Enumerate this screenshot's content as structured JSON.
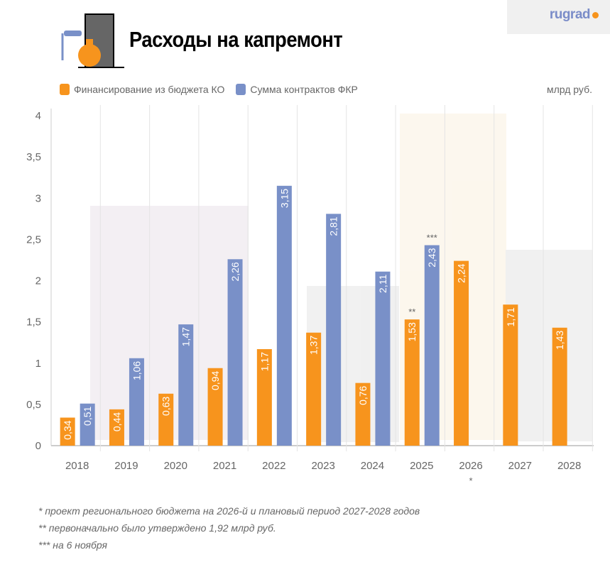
{
  "header": {
    "title": "Расходы на капремонт",
    "brand": "rugrad"
  },
  "chart_data": {
    "type": "bar",
    "title": "Расходы на капремонт",
    "unit": "млрд руб.",
    "categories": [
      "2018",
      "2019",
      "2020",
      "2021",
      "2022",
      "2023",
      "2024",
      "2025",
      "2026",
      "2027",
      "2028"
    ],
    "category_marks": [
      "",
      "",
      "",
      "",
      "",
      "",
      "",
      "",
      "*",
      "",
      ""
    ],
    "series": [
      {
        "name": "Финансирование из бюджета КО",
        "color": "#f7941d",
        "values": [
          0.34,
          0.44,
          0.63,
          0.94,
          1.17,
          1.37,
          0.76,
          1.53,
          2.24,
          1.71,
          1.43
        ],
        "labels": [
          "0,34",
          "0,44",
          "0,63",
          "0,94",
          "1,17",
          "1,37",
          "0,76",
          "1,53",
          "2,24",
          "1,71",
          "1,43"
        ],
        "marks": [
          "",
          "",
          "",
          "",
          "",
          "",
          "",
          "**",
          "",
          "",
          ""
        ]
      },
      {
        "name": "Сумма контрактов ФКР",
        "color": "#7990c8",
        "values": [
          0.51,
          1.06,
          1.47,
          2.26,
          3.15,
          2.81,
          2.11,
          2.43,
          null,
          null,
          null
        ],
        "labels": [
          "0,51",
          "1,06",
          "1,47",
          "2,26",
          "3,15",
          "2,81",
          "2,11",
          "2,43",
          "",
          "",
          ""
        ],
        "marks": [
          "",
          "",
          "",
          "",
          "",
          "",
          "",
          "***",
          "",
          "",
          ""
        ]
      }
    ],
    "ylim": [
      0,
      4
    ],
    "yticks": [
      0,
      0.5,
      1,
      1.5,
      2,
      2.5,
      3,
      3.5,
      4
    ],
    "ytick_labels": [
      "0",
      "0,5",
      "1",
      "1,5",
      "2",
      "2,5",
      "3",
      "3,5",
      "4"
    ],
    "legend": "top-left",
    "grid": "vertical separators"
  },
  "notes": [
    "* проект регионального бюджета на 2026-й и плановый период 2027-2028 годов",
    "** первоначально было утверждено 1,92 млрд руб.",
    "*** на 6 ноября"
  ]
}
